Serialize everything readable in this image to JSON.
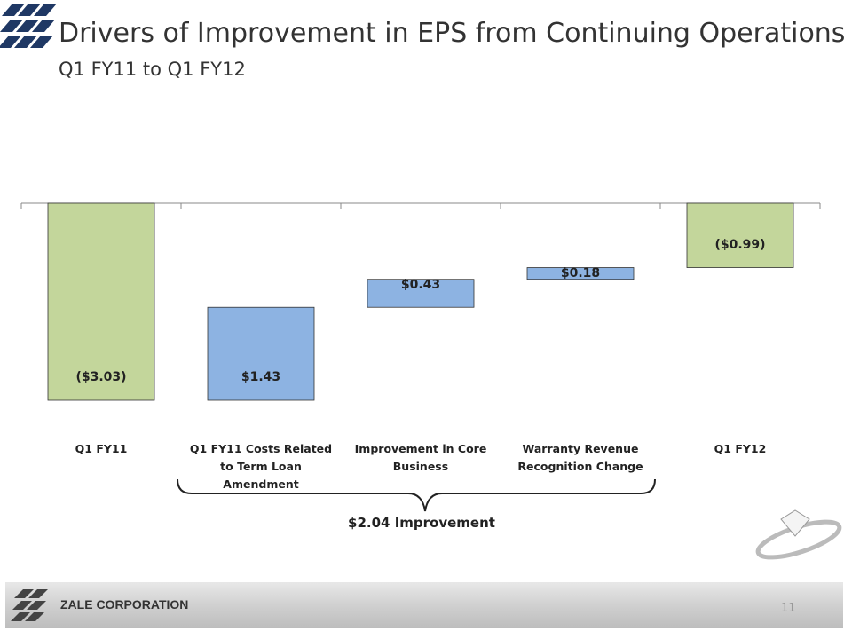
{
  "chart_data": {
    "type": "waterfall",
    "title": "Drivers of Improvement in EPS from Continuing Operations",
    "subtitle": "Q1 FY11 to Q1 FY12",
    "categories": [
      "Q1 FY11",
      "Q1 FY11 Costs Related to Term Loan Amendment",
      "Improvement in Core Business",
      "Warranty Revenue Recognition Change",
      "Q1 FY12"
    ],
    "values": [
      -3.03,
      1.43,
      0.43,
      0.18,
      -0.99
    ],
    "value_labels": [
      "($3.03)",
      "$1.43",
      "$0.43",
      "$0.18",
      "($0.99)"
    ],
    "totals": [
      true,
      false,
      false,
      false,
      true
    ],
    "total_color": "#c3d69b",
    "delta_color": "#8db3e2",
    "annotation": "$2.04 Improvement"
  },
  "footer": {
    "company": "ZALE CORPORATION",
    "page_number": "11"
  }
}
